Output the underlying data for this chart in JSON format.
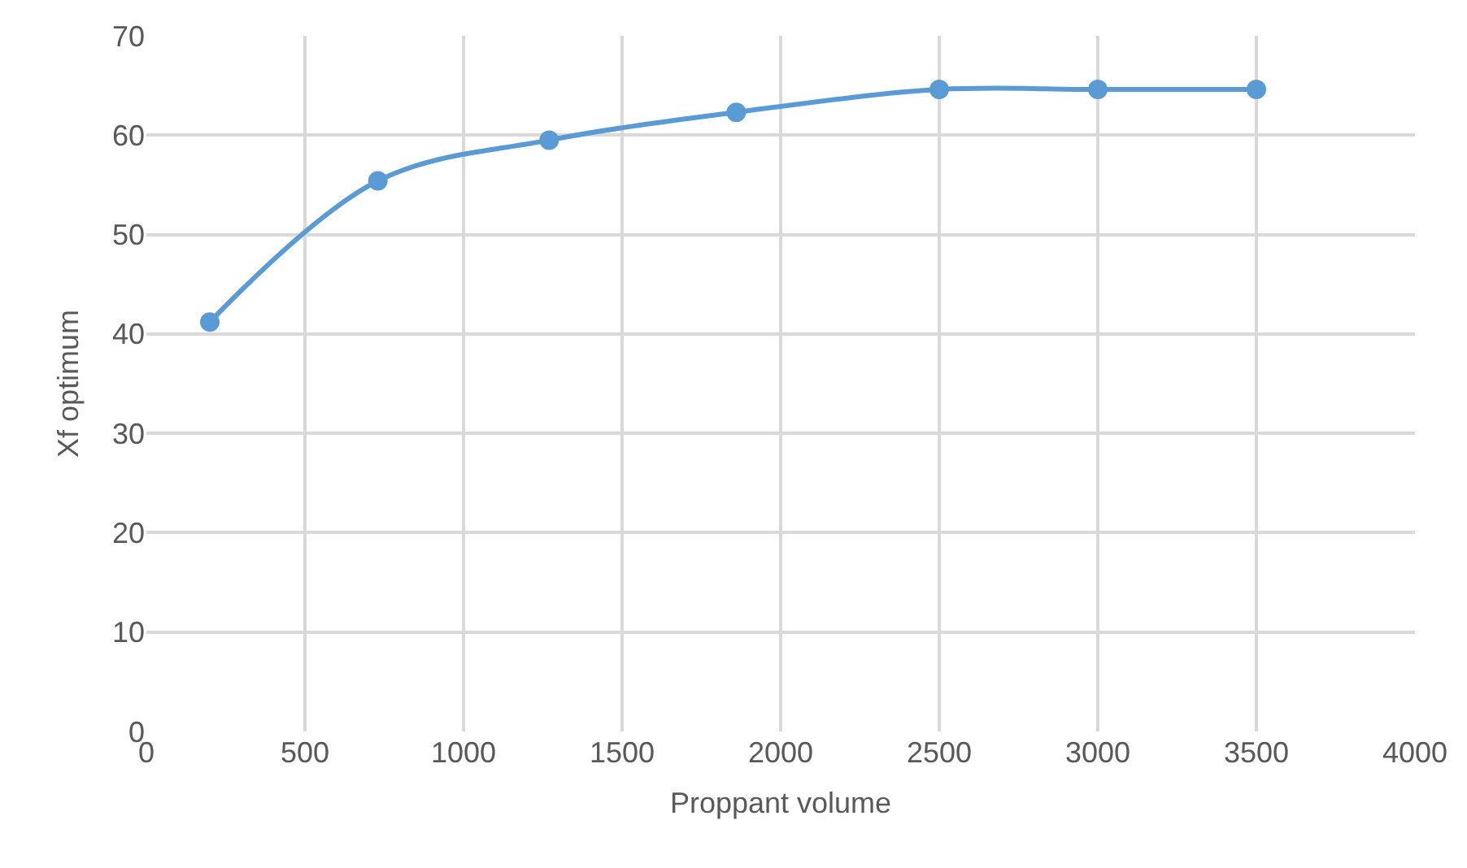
{
  "chart_data": {
    "type": "line",
    "xlabel": "Proppant volume",
    "ylabel": "Xf optimum",
    "x": [
      200,
      730,
      1270,
      1860,
      2500,
      3000,
      3500
    ],
    "series": [
      {
        "color": "#5b9bd5",
        "values": [
          41.2,
          55.4,
          59.5,
          62.3,
          64.6,
          64.6,
          64.6
        ]
      }
    ],
    "xlim": [
      0,
      4000
    ],
    "xticks": [
      0,
      500,
      1000,
      1500,
      2000,
      2500,
      3000,
      3500,
      4000
    ],
    "ylim": [
      0,
      70
    ],
    "yticks": [
      0,
      10,
      20,
      30,
      40,
      50,
      60,
      70
    ],
    "grid": true,
    "marker": "circle",
    "line_style": "solid"
  }
}
